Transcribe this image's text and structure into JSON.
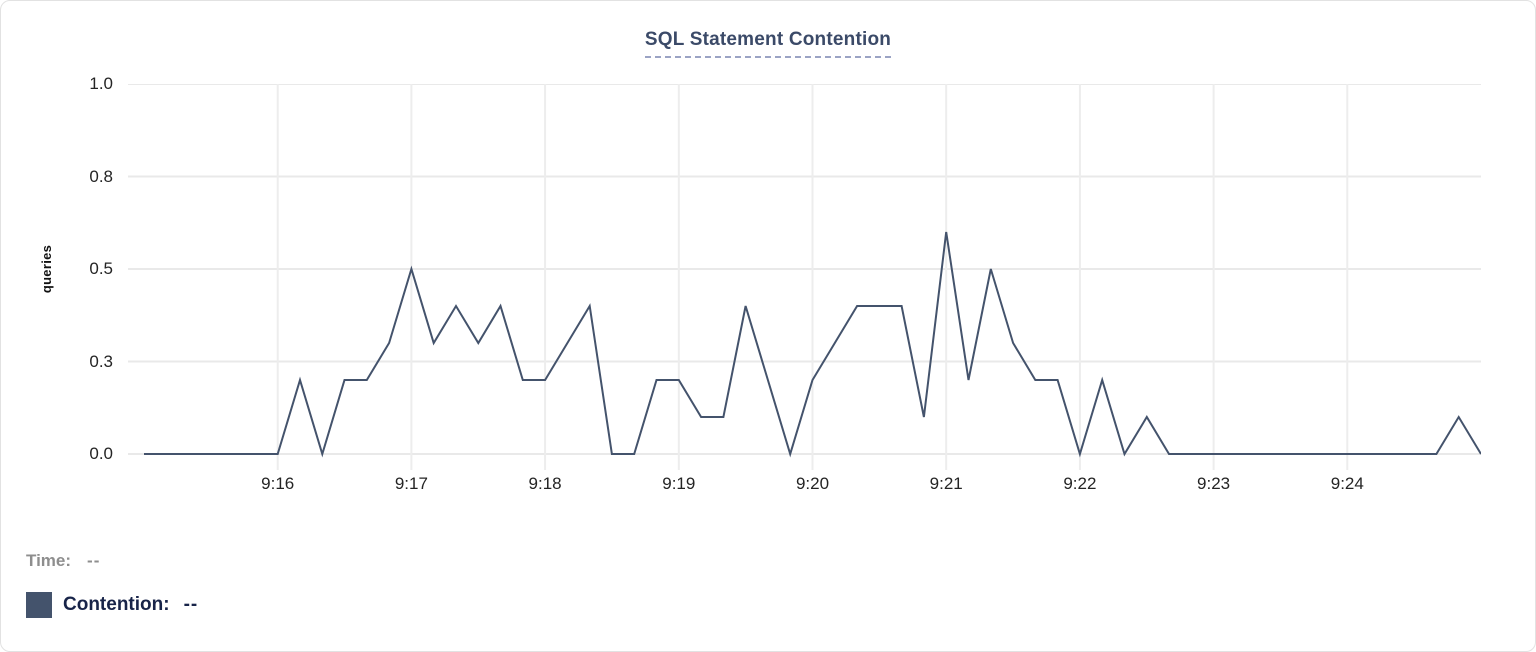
{
  "title": "SQL Statement Contention",
  "colors": {
    "line": "#44536c",
    "swatch": "#44536c",
    "title_text": "#3b4a68",
    "title_underline": "#9ba3c4",
    "grid": "#e9e9e9",
    "tick_text": "#242424",
    "time_text": "#8e8e8e",
    "series_text": "#182449",
    "card_border": "#e2e2e2"
  },
  "legend": {
    "time_label": "Time:",
    "time_value": "--",
    "series_label": "Contention:",
    "series_value": "--"
  },
  "chart_data": {
    "type": "line",
    "title": "SQL Statement Contention",
    "xlabel": "",
    "ylabel": "queries",
    "ylim": [
      0,
      1.0
    ],
    "grid": true,
    "legend_position": "bottom-left",
    "x_start": "9:15:00",
    "x_end": "9:25:00",
    "interval_seconds": 10,
    "y_ticks": [
      {
        "value": 0,
        "label": "0.0"
      },
      {
        "value": 0.25,
        "label": "0.3"
      },
      {
        "value": 0.5,
        "label": "0.5"
      },
      {
        "value": 0.75,
        "label": "0.8"
      },
      {
        "value": 1.0,
        "label": "1.0"
      }
    ],
    "x_ticks": [
      {
        "seconds": 60,
        "label": "9:16"
      },
      {
        "seconds": 120,
        "label": "9:17"
      },
      {
        "seconds": 180,
        "label": "9:18"
      },
      {
        "seconds": 240,
        "label": "9:19"
      },
      {
        "seconds": 300,
        "label": "9:20"
      },
      {
        "seconds": 360,
        "label": "9:21"
      },
      {
        "seconds": 420,
        "label": "9:22"
      },
      {
        "seconds": 480,
        "label": "9:23"
      },
      {
        "seconds": 540,
        "label": "9:24"
      }
    ],
    "series": [
      {
        "name": "Contention",
        "color": "#44536c",
        "values": [
          0,
          0,
          0,
          0,
          0,
          0,
          0,
          0.2,
          0,
          0.2,
          0.2,
          0.3,
          0.5,
          0.3,
          0.4,
          0.3,
          0.4,
          0.2,
          0.2,
          0.3,
          0.4,
          0,
          0,
          0.2,
          0.2,
          0.1,
          0.1,
          0.4,
          0.2,
          0,
          0.2,
          0.3,
          0.4,
          0.4,
          0.4,
          0.1,
          0.6,
          0.2,
          0.5,
          0.3,
          0.2,
          0.2,
          0,
          0.2,
          0,
          0.1,
          0,
          0,
          0,
          0,
          0,
          0,
          0,
          0,
          0,
          0,
          0,
          0,
          0,
          0.1,
          0
        ]
      }
    ]
  }
}
